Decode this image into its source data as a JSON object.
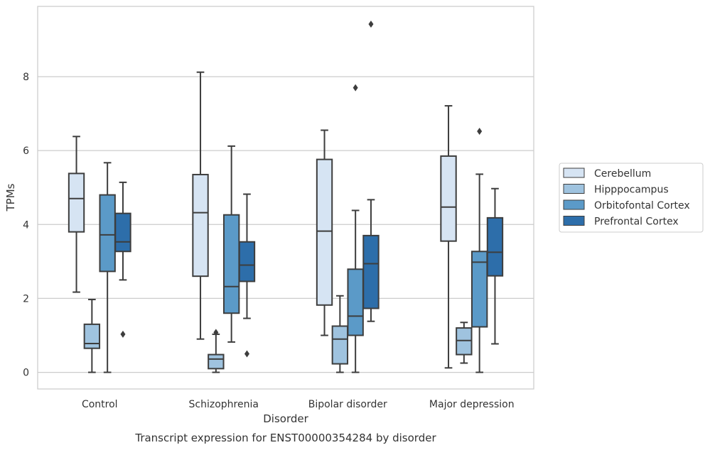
{
  "chart_data": {
    "type": "boxplot",
    "caption": "Transcript expression for ENST00000354284 by disorder",
    "xlabel": "Disorder",
    "ylabel": "TPMs",
    "ylim": [
      -0.45,
      9.9
    ],
    "yticks": [
      0,
      2,
      4,
      6,
      8
    ],
    "grid": true,
    "legend_position": "right",
    "categories": [
      "Control",
      "Schizophrenia",
      "Bipolar disorder",
      "Major depression"
    ],
    "series": [
      {
        "name": "Cerebellum",
        "color": "#d6e4f3",
        "boxes": [
          {
            "whislo": 2.17,
            "q1": 3.8,
            "med": 4.7,
            "q3": 5.38,
            "whishi": 6.38,
            "fliers": []
          },
          {
            "whislo": 0.9,
            "q1": 2.6,
            "med": 4.32,
            "q3": 5.35,
            "whishi": 8.12,
            "fliers": []
          },
          {
            "whislo": 1.0,
            "q1": 1.82,
            "med": 3.82,
            "q3": 5.76,
            "whishi": 6.55,
            "fliers": []
          },
          {
            "whislo": 0.12,
            "q1": 3.55,
            "med": 4.47,
            "q3": 5.85,
            "whishi": 7.21,
            "fliers": []
          }
        ]
      },
      {
        "name": "Hipppocampus",
        "color": "#9fc3df",
        "boxes": [
          {
            "whislo": 0.0,
            "q1": 0.65,
            "med": 0.78,
            "q3": 1.3,
            "whishi": 1.97,
            "fliers": []
          },
          {
            "whislo": 0.0,
            "q1": 0.1,
            "med": 0.36,
            "q3": 0.48,
            "whishi": 1.03,
            "fliers": [
              1.08
            ]
          },
          {
            "whislo": 0.0,
            "q1": 0.23,
            "med": 0.9,
            "q3": 1.25,
            "whishi": 2.07,
            "fliers": []
          },
          {
            "whislo": 0.25,
            "q1": 0.48,
            "med": 0.86,
            "q3": 1.2,
            "whishi": 1.35,
            "fliers": []
          }
        ]
      },
      {
        "name": "Orbitofontal Cortex",
        "color": "#5b9ac8",
        "boxes": [
          {
            "whislo": 0.0,
            "q1": 2.73,
            "med": 3.72,
            "q3": 4.8,
            "whishi": 5.67,
            "fliers": []
          },
          {
            "whislo": 0.82,
            "q1": 1.6,
            "med": 2.32,
            "q3": 4.26,
            "whishi": 6.12,
            "fliers": []
          },
          {
            "whislo": 0.0,
            "q1": 1.0,
            "med": 1.52,
            "q3": 2.79,
            "whishi": 4.38,
            "fliers": [
              7.7
            ]
          },
          {
            "whislo": 0.0,
            "q1": 1.23,
            "med": 2.98,
            "q3": 3.27,
            "whishi": 5.36,
            "fliers": [
              6.52
            ]
          }
        ]
      },
      {
        "name": "Prefrontal Cortex",
        "color": "#2d6eaa",
        "boxes": [
          {
            "whislo": 2.5,
            "q1": 3.27,
            "med": 3.53,
            "q3": 4.3,
            "whishi": 5.14,
            "fliers": [
              1.03
            ]
          },
          {
            "whislo": 1.46,
            "q1": 2.46,
            "med": 2.9,
            "q3": 3.53,
            "whishi": 4.82,
            "fliers": [
              0.5
            ]
          },
          {
            "whislo": 1.38,
            "q1": 1.73,
            "med": 2.94,
            "q3": 3.7,
            "whishi": 4.67,
            "fliers": [
              9.42
            ]
          },
          {
            "whislo": 0.77,
            "q1": 2.61,
            "med": 3.25,
            "q3": 4.18,
            "whishi": 4.97,
            "fliers": []
          }
        ]
      }
    ]
  }
}
